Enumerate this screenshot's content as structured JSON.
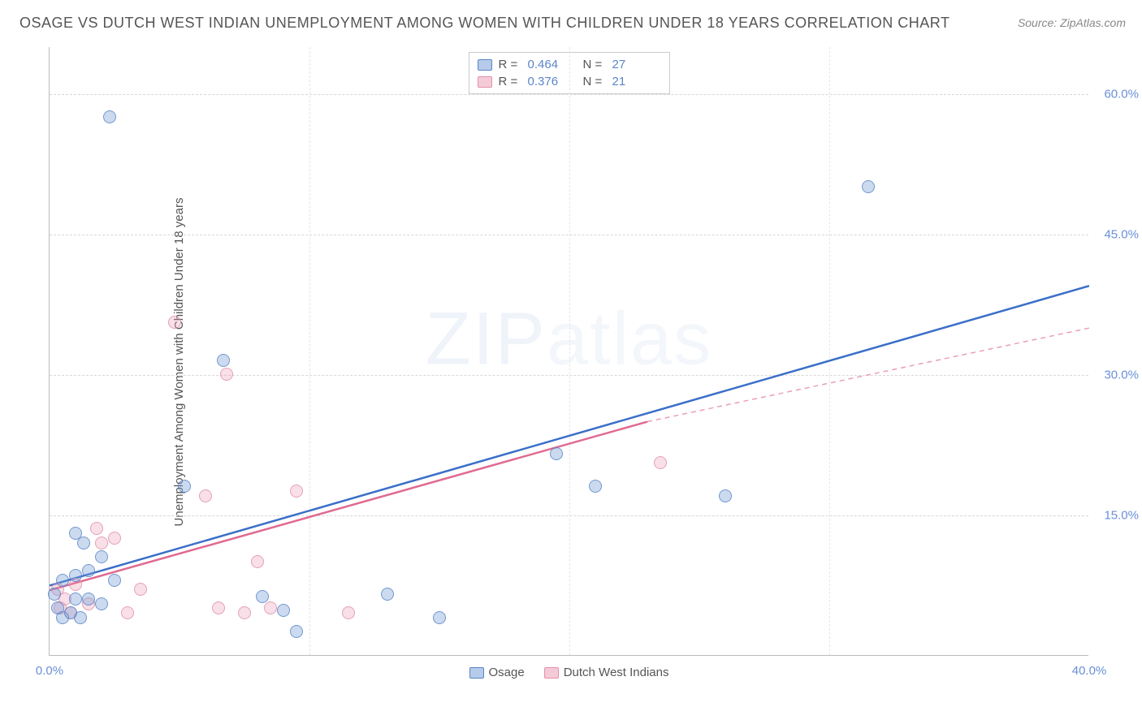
{
  "title": "OSAGE VS DUTCH WEST INDIAN UNEMPLOYMENT AMONG WOMEN WITH CHILDREN UNDER 18 YEARS CORRELATION CHART",
  "source_label": "Source: ZipAtlas.com",
  "y_axis_label": "Unemployment Among Women with Children Under 18 years",
  "watermark": {
    "bold": "ZIP",
    "thin": "atlas"
  },
  "chart": {
    "type": "scatter",
    "background_color": "#ffffff",
    "grid_color": "#d8d8d8",
    "axis_color": "#bbbbbb",
    "xlim": [
      0,
      40
    ],
    "ylim": [
      0,
      65
    ],
    "x_ticks": [
      {
        "v": 0,
        "l": "0.0%"
      },
      {
        "v": 40,
        "l": "40.0%"
      }
    ],
    "y_ticks": [
      {
        "v": 15,
        "l": "15.0%"
      },
      {
        "v": 30,
        "l": "30.0%"
      },
      {
        "v": 45,
        "l": "45.0%"
      },
      {
        "v": 60,
        "l": "60.0%"
      }
    ],
    "x_grid": [
      10,
      20,
      30
    ],
    "legend_top": [
      {
        "color": "blue",
        "r": "0.464",
        "n": "27"
      },
      {
        "color": "pink",
        "r": "0.376",
        "n": "21"
      }
    ],
    "legend_bottom": [
      {
        "color": "blue",
        "label": "Osage"
      },
      {
        "color": "pink",
        "label": "Dutch West Indians"
      }
    ],
    "series": {
      "blue": {
        "color_fill": "rgba(120,160,215,0.45)",
        "color_stroke": "#5a85c8",
        "trend": {
          "x1": 0,
          "y1": 7.5,
          "x2": 40,
          "y2": 39.5,
          "stroke": "#3a6fc8",
          "width": 2.5,
          "dash": "none"
        },
        "points": [
          {
            "x": 2.3,
            "y": 57.5
          },
          {
            "x": 31.5,
            "y": 50.0
          },
          {
            "x": 6.7,
            "y": 31.5
          },
          {
            "x": 5.2,
            "y": 18.0
          },
          {
            "x": 19.5,
            "y": 21.5
          },
          {
            "x": 21.0,
            "y": 18.0
          },
          {
            "x": 26.0,
            "y": 17.0
          },
          {
            "x": 1.0,
            "y": 13.0
          },
          {
            "x": 1.3,
            "y": 12.0
          },
          {
            "x": 2.0,
            "y": 10.5
          },
          {
            "x": 0.5,
            "y": 8.0
          },
          {
            "x": 1.0,
            "y": 8.5
          },
          {
            "x": 1.5,
            "y": 9.0
          },
          {
            "x": 2.5,
            "y": 8.0
          },
          {
            "x": 1.0,
            "y": 6.0
          },
          {
            "x": 1.5,
            "y": 6.0
          },
          {
            "x": 2.0,
            "y": 5.5
          },
          {
            "x": 0.3,
            "y": 5.0
          },
          {
            "x": 0.8,
            "y": 4.5
          },
          {
            "x": 1.2,
            "y": 4.0
          },
          {
            "x": 8.2,
            "y": 6.2
          },
          {
            "x": 9.0,
            "y": 4.8
          },
          {
            "x": 9.5,
            "y": 2.5
          },
          {
            "x": 13.0,
            "y": 6.5
          },
          {
            "x": 15.0,
            "y": 4.0
          },
          {
            "x": 0.2,
            "y": 6.5
          },
          {
            "x": 0.5,
            "y": 4.0
          }
        ]
      },
      "pink": {
        "color_fill": "rgba(235,150,175,0.35)",
        "color_stroke": "#e090ac",
        "trend_solid": {
          "x1": 0,
          "y1": 7.0,
          "x2": 23,
          "y2": 25.0,
          "stroke": "#e06a90",
          "width": 2.5
        },
        "trend_dash": {
          "x1": 23,
          "y1": 25.0,
          "x2": 40,
          "y2": 35.0,
          "stroke": "#e8a0b6",
          "width": 1.5,
          "dash": "6,5"
        },
        "points": [
          {
            "x": 4.8,
            "y": 35.5
          },
          {
            "x": 6.8,
            "y": 30.0
          },
          {
            "x": 6.0,
            "y": 17.0
          },
          {
            "x": 23.5,
            "y": 20.5
          },
          {
            "x": 9.5,
            "y": 17.5
          },
          {
            "x": 1.8,
            "y": 13.5
          },
          {
            "x": 2.5,
            "y": 12.5
          },
          {
            "x": 2.0,
            "y": 12.0
          },
          {
            "x": 8.0,
            "y": 10.0
          },
          {
            "x": 3.5,
            "y": 7.0
          },
          {
            "x": 3.0,
            "y": 4.5
          },
          {
            "x": 6.5,
            "y": 5.0
          },
          {
            "x": 7.5,
            "y": 4.5
          },
          {
            "x": 8.5,
            "y": 5.0
          },
          {
            "x": 11.5,
            "y": 4.5
          },
          {
            "x": 0.3,
            "y": 7.0
          },
          {
            "x": 0.6,
            "y": 6.0
          },
          {
            "x": 1.0,
            "y": 7.5
          },
          {
            "x": 0.4,
            "y": 5.0
          },
          {
            "x": 1.5,
            "y": 5.5
          },
          {
            "x": 0.8,
            "y": 4.5
          }
        ]
      }
    }
  }
}
